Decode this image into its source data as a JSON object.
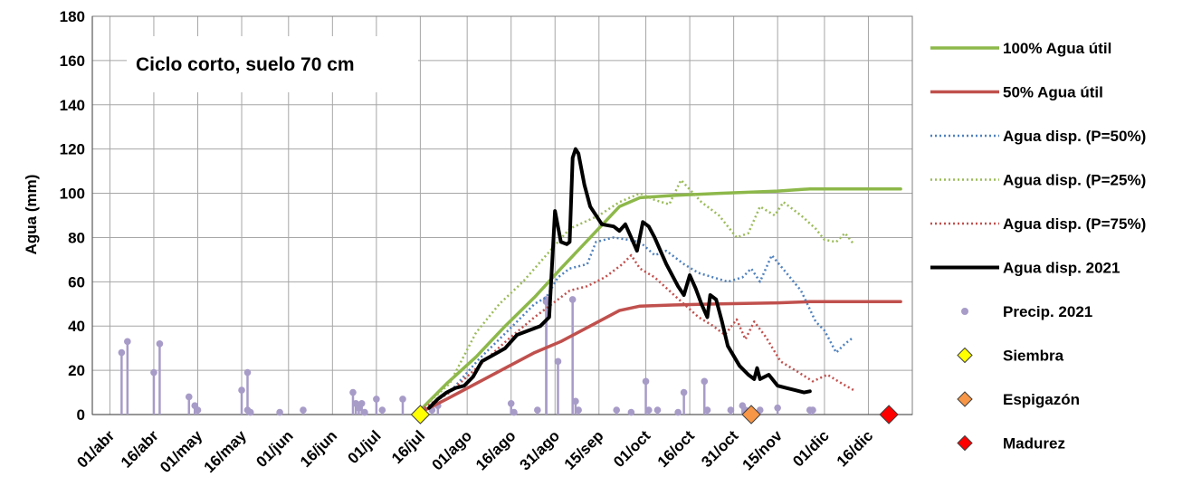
{
  "chart_data": {
    "type": "line",
    "title": "",
    "annotation": "Ciclo corto, suelo 70 cm",
    "xlabel": "",
    "ylabel": "Agua (mm)",
    "ylim": [
      0,
      180
    ],
    "yticks": [
      0,
      20,
      40,
      60,
      80,
      100,
      120,
      140,
      160,
      180
    ],
    "x_axis": "date",
    "xlim": [
      "2021-03-26",
      "2021-12-31"
    ],
    "xtick_labels": [
      {
        "date": "2021-04-01",
        "label": "01/abr"
      },
      {
        "date": "2021-04-16",
        "label": "16/abr"
      },
      {
        "date": "2021-05-01",
        "label": "01/may"
      },
      {
        "date": "2021-05-16",
        "label": "16/may"
      },
      {
        "date": "2021-06-01",
        "label": "01/jun"
      },
      {
        "date": "2021-06-16",
        "label": "16/jun"
      },
      {
        "date": "2021-07-01",
        "label": "01/jul"
      },
      {
        "date": "2021-07-16",
        "label": "16/jul"
      },
      {
        "date": "2021-08-01",
        "label": "01/ago"
      },
      {
        "date": "2021-08-16",
        "label": "16/ago"
      },
      {
        "date": "2021-08-31",
        "label": "31/ago"
      },
      {
        "date": "2021-09-15",
        "label": "15/sep"
      },
      {
        "date": "2021-10-01",
        "label": "01/oct"
      },
      {
        "date": "2021-10-16",
        "label": "16/oct"
      },
      {
        "date": "2021-10-31",
        "label": "31/oct"
      },
      {
        "date": "2021-11-15",
        "label": "15/nov"
      },
      {
        "date": "2021-12-01",
        "label": "01/dic"
      },
      {
        "date": "2021-12-16",
        "label": "16/dic"
      }
    ],
    "grid": true,
    "legend_position": "right",
    "series": [
      {
        "name": "100% Agua útil",
        "style": "solid",
        "color": "#8db84a",
        "width": 3.5,
        "points": [
          [
            "2021-07-16",
            2
          ],
          [
            "2021-07-25",
            14
          ],
          [
            "2021-08-04",
            26
          ],
          [
            "2021-08-14",
            40
          ],
          [
            "2021-08-24",
            53
          ],
          [
            "2021-09-02",
            66
          ],
          [
            "2021-09-12",
            80
          ],
          [
            "2021-09-22",
            94
          ],
          [
            "2021-09-29",
            98
          ],
          [
            "2021-10-10",
            99
          ],
          [
            "2021-10-26",
            100
          ],
          [
            "2021-11-15",
            101
          ],
          [
            "2021-11-26",
            102
          ],
          [
            "2021-12-27",
            102
          ]
        ]
      },
      {
        "name": "50% Agua útil",
        "style": "solid",
        "color": "#c0504d",
        "width": 3.5,
        "points": [
          [
            "2021-07-16",
            1
          ],
          [
            "2021-07-25",
            7
          ],
          [
            "2021-08-04",
            14
          ],
          [
            "2021-08-14",
            21
          ],
          [
            "2021-08-24",
            28
          ],
          [
            "2021-09-02",
            33
          ],
          [
            "2021-09-12",
            40
          ],
          [
            "2021-09-22",
            47
          ],
          [
            "2021-09-29",
            49
          ],
          [
            "2021-10-10",
            49.5
          ],
          [
            "2021-10-26",
            50
          ],
          [
            "2021-11-15",
            50.5
          ],
          [
            "2021-11-26",
            51
          ],
          [
            "2021-12-27",
            51
          ]
        ]
      },
      {
        "name": "Agua disp. (P=50%)",
        "style": "dotted",
        "color": "#4f81bd",
        "width": 2.5,
        "points": [
          [
            "2021-07-16",
            2
          ],
          [
            "2021-07-26",
            10
          ],
          [
            "2021-08-05",
            25
          ],
          [
            "2021-08-15",
            38
          ],
          [
            "2021-08-24",
            50
          ],
          [
            "2021-08-28",
            53
          ],
          [
            "2021-09-01",
            62
          ],
          [
            "2021-09-05",
            66
          ],
          [
            "2021-09-11",
            68
          ],
          [
            "2021-09-14",
            78
          ],
          [
            "2021-09-20",
            80
          ],
          [
            "2021-09-25",
            79
          ],
          [
            "2021-09-29",
            78
          ],
          [
            "2021-10-04",
            72
          ],
          [
            "2021-10-08",
            74
          ],
          [
            "2021-10-14",
            68
          ],
          [
            "2021-10-19",
            64
          ],
          [
            "2021-10-24",
            62
          ],
          [
            "2021-10-29",
            60
          ],
          [
            "2021-11-03",
            62
          ],
          [
            "2021-11-06",
            66
          ],
          [
            "2021-11-09",
            60
          ],
          [
            "2021-11-13",
            72
          ],
          [
            "2021-11-18",
            64
          ],
          [
            "2021-11-23",
            56
          ],
          [
            "2021-11-28",
            42
          ],
          [
            "2021-12-01",
            38
          ],
          [
            "2021-12-05",
            28
          ],
          [
            "2021-12-08",
            32
          ],
          [
            "2021-12-11",
            35
          ]
        ]
      },
      {
        "name": "Agua disp. (P=25%)",
        "style": "dotted",
        "color": "#9bbb59",
        "width": 2.5,
        "points": [
          [
            "2021-07-16",
            2
          ],
          [
            "2021-07-26",
            14
          ],
          [
            "2021-08-04",
            37
          ],
          [
            "2021-08-12",
            50
          ],
          [
            "2021-08-20",
            60
          ],
          [
            "2021-08-28",
            72
          ],
          [
            "2021-09-05",
            84
          ],
          [
            "2021-09-15",
            90
          ],
          [
            "2021-09-22",
            96
          ],
          [
            "2021-09-29",
            100
          ],
          [
            "2021-10-04",
            97
          ],
          [
            "2021-10-09",
            95
          ],
          [
            "2021-10-13",
            106
          ],
          [
            "2021-10-20",
            96
          ],
          [
            "2021-10-26",
            90
          ],
          [
            "2021-11-01",
            80
          ],
          [
            "2021-11-05",
            82
          ],
          [
            "2021-11-09",
            94
          ],
          [
            "2021-11-14",
            90
          ],
          [
            "2021-11-17",
            96
          ],
          [
            "2021-11-23",
            90
          ],
          [
            "2021-11-28",
            84
          ],
          [
            "2021-12-01",
            79
          ],
          [
            "2021-12-05",
            78
          ],
          [
            "2021-12-08",
            82
          ],
          [
            "2021-12-11",
            77
          ]
        ]
      },
      {
        "name": "Agua disp. (P=75%)",
        "style": "dotted",
        "color": "#c0504d",
        "width": 2.5,
        "points": [
          [
            "2021-07-16",
            2
          ],
          [
            "2021-07-26",
            10
          ],
          [
            "2021-08-05",
            22
          ],
          [
            "2021-08-15",
            34
          ],
          [
            "2021-08-24",
            44
          ],
          [
            "2021-08-30",
            50
          ],
          [
            "2021-09-05",
            56
          ],
          [
            "2021-09-11",
            58
          ],
          [
            "2021-09-17",
            62
          ],
          [
            "2021-09-23",
            68
          ],
          [
            "2021-09-26",
            72
          ],
          [
            "2021-09-29",
            66
          ],
          [
            "2021-10-04",
            62
          ],
          [
            "2021-10-09",
            56
          ],
          [
            "2021-10-14",
            50
          ],
          [
            "2021-10-19",
            44
          ],
          [
            "2021-10-24",
            40
          ],
          [
            "2021-10-28",
            36
          ],
          [
            "2021-11-01",
            43
          ],
          [
            "2021-11-04",
            34
          ],
          [
            "2021-11-07",
            42
          ],
          [
            "2021-11-11",
            35
          ],
          [
            "2021-11-16",
            24
          ],
          [
            "2021-11-21",
            20
          ],
          [
            "2021-11-27",
            15
          ],
          [
            "2021-12-02",
            18
          ],
          [
            "2021-12-07",
            14
          ],
          [
            "2021-12-11",
            11
          ]
        ]
      },
      {
        "name": "Agua disp. 2021",
        "style": "solid",
        "color": "#000000",
        "width": 4,
        "points": [
          [
            "2021-07-19",
            3
          ],
          [
            "2021-07-22",
            7
          ],
          [
            "2021-07-25",
            10
          ],
          [
            "2021-07-28",
            12
          ],
          [
            "2021-07-31",
            13
          ],
          [
            "2021-08-03",
            17
          ],
          [
            "2021-08-06",
            24
          ],
          [
            "2021-08-10",
            27
          ],
          [
            "2021-08-14",
            30
          ],
          [
            "2021-08-18",
            36
          ],
          [
            "2021-08-22",
            38
          ],
          [
            "2021-08-26",
            40
          ],
          [
            "2021-08-29",
            44
          ],
          [
            "2021-08-31",
            92
          ],
          [
            "2021-09-02",
            78
          ],
          [
            "2021-09-04",
            77
          ],
          [
            "2021-09-05",
            78
          ],
          [
            "2021-09-06",
            116
          ],
          [
            "2021-09-07",
            120
          ],
          [
            "2021-09-08",
            118
          ],
          [
            "2021-09-10",
            104
          ],
          [
            "2021-09-12",
            94
          ],
          [
            "2021-09-16",
            86
          ],
          [
            "2021-09-20",
            85
          ],
          [
            "2021-09-22",
            83
          ],
          [
            "2021-09-24",
            86
          ],
          [
            "2021-09-26",
            80
          ],
          [
            "2021-09-28",
            74
          ],
          [
            "2021-09-30",
            87
          ],
          [
            "2021-10-02",
            85
          ],
          [
            "2021-10-04",
            80
          ],
          [
            "2021-10-08",
            68
          ],
          [
            "2021-10-12",
            58
          ],
          [
            "2021-10-14",
            54
          ],
          [
            "2021-10-16",
            63
          ],
          [
            "2021-10-18",
            57
          ],
          [
            "2021-10-20",
            50
          ],
          [
            "2021-10-22",
            44
          ],
          [
            "2021-10-23",
            54
          ],
          [
            "2021-10-25",
            52
          ],
          [
            "2021-10-27",
            42
          ],
          [
            "2021-10-29",
            31
          ],
          [
            "2021-11-02",
            22
          ],
          [
            "2021-11-05",
            18
          ],
          [
            "2021-11-07",
            16
          ],
          [
            "2021-11-08",
            21
          ],
          [
            "2021-11-09",
            16
          ],
          [
            "2021-11-12",
            18
          ],
          [
            "2021-11-15",
            13
          ],
          [
            "2021-11-18",
            12
          ],
          [
            "2021-11-21",
            11
          ],
          [
            "2021-11-24",
            10
          ],
          [
            "2021-11-26",
            10.5
          ]
        ]
      }
    ],
    "precip": {
      "name": "Precip. 2021",
      "color": "#a79bc8",
      "points": [
        [
          "2021-04-05",
          28
        ],
        [
          "2021-04-07",
          33
        ],
        [
          "2021-04-16",
          19
        ],
        [
          "2021-04-18",
          32
        ],
        [
          "2021-04-28",
          8
        ],
        [
          "2021-04-30",
          4
        ],
        [
          "2021-05-01",
          2
        ],
        [
          "2021-05-16",
          11
        ],
        [
          "2021-05-18",
          19
        ],
        [
          "2021-05-18",
          2
        ],
        [
          "2021-05-19",
          1
        ],
        [
          "2021-05-29",
          1
        ],
        [
          "2021-06-06",
          2
        ],
        [
          "2021-06-23",
          10
        ],
        [
          "2021-06-24",
          5
        ],
        [
          "2021-06-25",
          3
        ],
        [
          "2021-06-26",
          5
        ],
        [
          "2021-06-27",
          1
        ],
        [
          "2021-07-01",
          7
        ],
        [
          "2021-07-03",
          2
        ],
        [
          "2021-07-10",
          7
        ],
        [
          "2021-07-20",
          2
        ],
        [
          "2021-07-22",
          4
        ],
        [
          "2021-08-16",
          5
        ],
        [
          "2021-08-17",
          1
        ],
        [
          "2021-08-25",
          2
        ],
        [
          "2021-08-28",
          51
        ],
        [
          "2021-08-28",
          52
        ],
        [
          "2021-09-01",
          24
        ],
        [
          "2021-09-06",
          52
        ],
        [
          "2021-09-07",
          6
        ],
        [
          "2021-09-08",
          2
        ],
        [
          "2021-09-21",
          2
        ],
        [
          "2021-09-26",
          1
        ],
        [
          "2021-10-01",
          15
        ],
        [
          "2021-10-02",
          2
        ],
        [
          "2021-10-05",
          2
        ],
        [
          "2021-10-12",
          1
        ],
        [
          "2021-10-14",
          10
        ],
        [
          "2021-10-21",
          15
        ],
        [
          "2021-10-22",
          2
        ],
        [
          "2021-10-30",
          2
        ],
        [
          "2021-11-03",
          4
        ],
        [
          "2021-11-04",
          2
        ],
        [
          "2021-11-09",
          2
        ],
        [
          "2021-11-15",
          3
        ],
        [
          "2021-11-26",
          2
        ],
        [
          "2021-11-27",
          2
        ]
      ]
    },
    "markers": [
      {
        "name": "Siembra",
        "date": "2021-07-16",
        "value": 0,
        "color": "#ffff00"
      },
      {
        "name": "Espigazón",
        "date": "2021-11-06",
        "value": 0,
        "color": "#f79646"
      },
      {
        "name": "Madurez",
        "date": "2021-12-23",
        "value": 0,
        "color": "#ff0000"
      }
    ]
  }
}
